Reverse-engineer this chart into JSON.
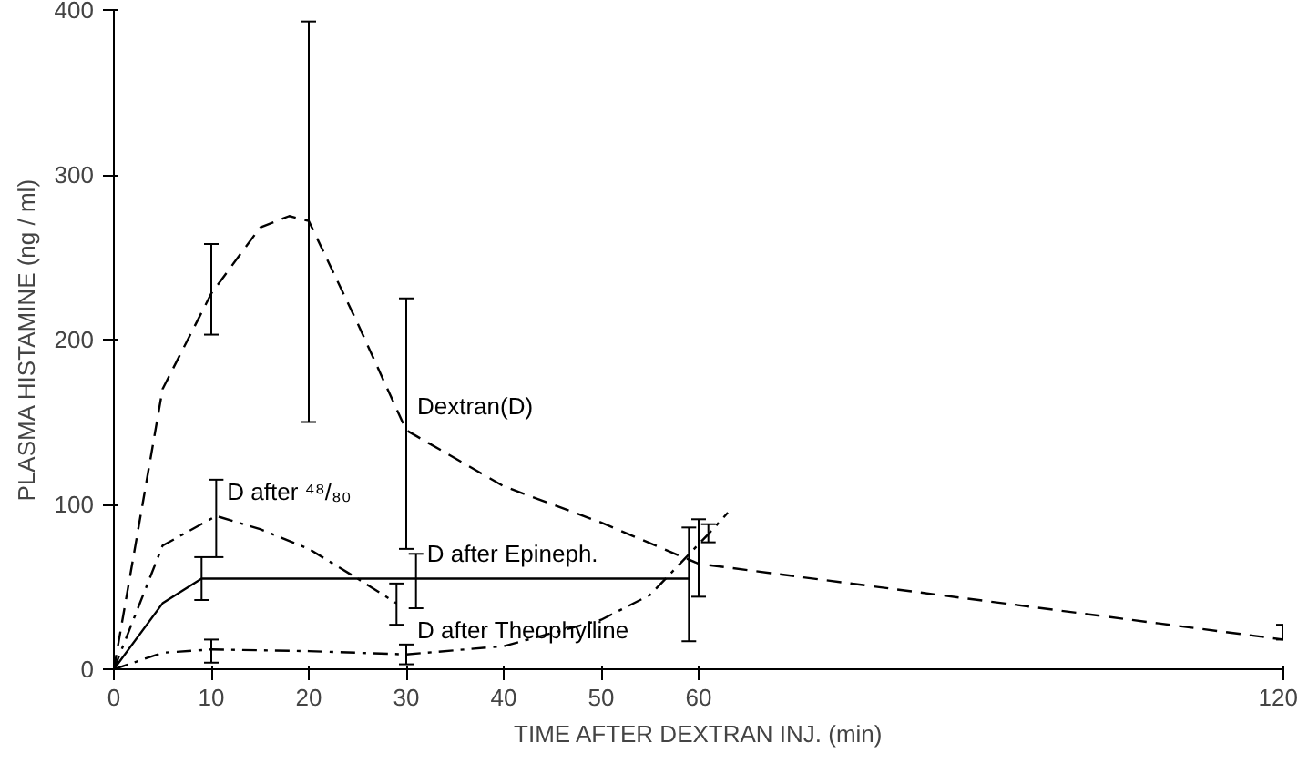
{
  "chart_data": {
    "type": "line",
    "xlabel": "TIME AFTER DEXTRAN INJ. (min)",
    "ylabel": "PLASMA HISTAMINE (ng / ml)",
    "xlim": [
      0,
      120
    ],
    "xticks": [
      0,
      10,
      20,
      30,
      40,
      50,
      60,
      120
    ],
    "ylim": [
      0,
      400
    ],
    "yticks": [
      0,
      100,
      200,
      300,
      400
    ],
    "grid": false,
    "series": [
      {
        "name": "Dextran(D)",
        "color": "#000000",
        "line_style": "dashed",
        "x": [
          0,
          5,
          10,
          15,
          18,
          20,
          25,
          30,
          40,
          50,
          60,
          120
        ],
        "values": [
          0,
          170,
          228,
          268,
          275,
          272,
          210,
          145,
          111,
          89,
          64,
          18
        ],
        "errors": [
          null,
          null,
          [
            203,
            258
          ],
          null,
          null,
          [
            150,
            393
          ],
          null,
          [
            73,
            225
          ],
          null,
          null,
          [
            44,
            91
          ],
          [
            18,
            27
          ]
        ]
      },
      {
        "name": "D after ⁴⁸/₈₀",
        "color": "#000000",
        "line_style": "dashdot",
        "x": [
          0,
          5,
          10.5,
          15,
          20,
          25,
          29
        ],
        "values": [
          0,
          75,
          93,
          85,
          73,
          55,
          40
        ],
        "errors": [
          null,
          null,
          [
            68,
            115
          ],
          null,
          null,
          null,
          [
            27,
            52
          ]
        ]
      },
      {
        "name": "D after Epineph.",
        "color": "#000000",
        "line_style": "solid",
        "x": [
          0,
          5,
          9,
          31,
          59
        ],
        "values": [
          0,
          40,
          55,
          55,
          55
        ],
        "errors": [
          null,
          null,
          [
            42,
            68
          ],
          [
            37,
            70
          ],
          [
            17,
            86
          ]
        ]
      },
      {
        "name": "D after Theophylline",
        "color": "#000000",
        "line_style": "dashdot",
        "x": [
          0,
          5,
          10,
          20,
          30,
          40,
          50,
          55,
          61,
          63
        ],
        "values": [
          0,
          10,
          12,
          11,
          9,
          14,
          30,
          45,
          82,
          95
        ],
        "errors": [
          null,
          null,
          [
            4,
            18
          ],
          null,
          [
            3,
            15
          ],
          null,
          null,
          null,
          [
            77,
            88
          ],
          null
        ]
      }
    ]
  }
}
